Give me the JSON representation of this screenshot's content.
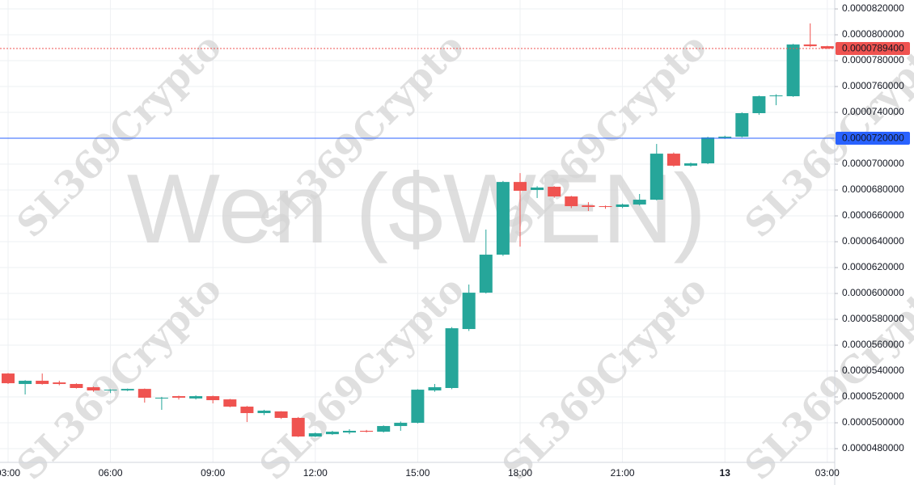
{
  "chart_data": {
    "type": "candlestick",
    "title": "Wen ($WEN)",
    "watermark": "SL369Crypto",
    "up_color": "#26a69a",
    "down_color": "#ef5350",
    "grid": true,
    "categories": [
      "03:00",
      null,
      null,
      null,
      null,
      null,
      "06:00",
      null,
      null,
      null,
      null,
      null,
      "09:00",
      null,
      null,
      null,
      null,
      null,
      "12:00",
      null,
      null,
      null,
      null,
      null,
      "15:00",
      null,
      null,
      null,
      null,
      null,
      "18:00",
      null,
      null,
      null,
      null,
      null,
      "21:00",
      null,
      null,
      null,
      null,
      null,
      "13",
      null,
      null,
      null,
      null,
      null,
      "03:00"
    ],
    "open": [
      5.381e-05,
      5.3e-05,
      5.325e-05,
      5.312e-05,
      5.3e-05,
      5.275e-05,
      5.25e-05,
      5.25e-05,
      5.262e-05,
      5.19e-05,
      5.206e-05,
      5.188e-05,
      5.206e-05,
      5.181e-05,
      5.125e-05,
      5.075e-05,
      5.088e-05,
      5.038e-05,
      4.894e-05,
      4.912e-05,
      4.925e-05,
      4.938e-05,
      4.931e-05,
      4.975e-05,
      5e-05,
      5.25e-05,
      5.269e-05,
      5.725e-05,
      6.006e-05,
      6.3e-05,
      6.862e-05,
      6.8e-05,
      6.825e-05,
      6.75e-05,
      6.681e-05,
      6.675e-05,
      6.669e-05,
      6.688e-05,
      6.725e-05,
      7.081e-05,
      6.988e-05,
      7.006e-05,
      7.2e-05,
      7.212e-05,
      7.394e-05,
      7.525e-05,
      7.525e-05,
      7.925e-05,
      7.912e-05
    ],
    "high": [
      5.385e-05,
      5.33e-05,
      5.381e-05,
      5.325e-05,
      5.305e-05,
      5.28e-05,
      5.26e-05,
      5.265e-05,
      5.265e-05,
      5.2e-05,
      5.21e-05,
      5.212e-05,
      5.21e-05,
      5.185e-05,
      5.13e-05,
      5.1e-05,
      5.09e-05,
      5.045e-05,
      4.925e-05,
      4.938e-05,
      4.95e-05,
      4.945e-05,
      4.98e-05,
      5.01e-05,
      5.26e-05,
      5.3e-05,
      5.74e-05,
      6.069e-05,
      6.494e-05,
      6.87e-05,
      6.931e-05,
      6.83e-05,
      6.83e-05,
      6.755e-05,
      6.706e-05,
      6.68e-05,
      6.695e-05,
      6.769e-05,
      7.156e-05,
      7.09e-05,
      7.012e-05,
      7.212e-05,
      7.22e-05,
      7.4e-05,
      7.53e-05,
      7.54e-05,
      7.93e-05,
      8.088e-05,
      7.915e-05
    ],
    "low": [
      5.3e-05,
      5.219e-05,
      5.295e-05,
      5.29e-05,
      5.265e-05,
      5.24e-05,
      5.23e-05,
      5.245e-05,
      5.156e-05,
      5.1e-05,
      5.18e-05,
      5.18e-05,
      5.15e-05,
      5.12e-05,
      5.006e-05,
      5.06e-05,
      5.03e-05,
      4.89e-05,
      4.89e-05,
      4.906e-05,
      4.912e-05,
      4.925e-05,
      4.925e-05,
      4.938e-05,
      4.995e-05,
      5.24e-05,
      5.26e-05,
      5.71e-05,
      6e-05,
      6.29e-05,
      6.362e-05,
      6.738e-05,
      6.74e-05,
      6.66e-05,
      6.638e-05,
      6.655e-05,
      6.66e-05,
      6.68e-05,
      6.72e-05,
      6.98e-05,
      6.98e-05,
      7e-05,
      7.195e-05,
      7.206e-05,
      7.381e-05,
      7.456e-05,
      7.52e-05,
      7.905e-05,
      7.89e-05
    ],
    "close": [
      5.306e-05,
      5.325e-05,
      5.3e-05,
      5.3e-05,
      5.269e-05,
      5.25e-05,
      5.256e-05,
      5.262e-05,
      5.194e-05,
      5.194e-05,
      5.194e-05,
      5.206e-05,
      5.175e-05,
      5.125e-05,
      5.075e-05,
      5.094e-05,
      5.038e-05,
      4.894e-05,
      4.919e-05,
      4.931e-05,
      4.938e-05,
      4.931e-05,
      4.975e-05,
      5e-05,
      5.256e-05,
      5.275e-05,
      5.731e-05,
      6.006e-05,
      6.3e-05,
      6.862e-05,
      6.794e-05,
      6.819e-05,
      6.75e-05,
      6.675e-05,
      6.669e-05,
      6.669e-05,
      6.688e-05,
      6.725e-05,
      7.081e-05,
      6.988e-05,
      7.006e-05,
      7.206e-05,
      7.212e-05,
      7.394e-05,
      7.525e-05,
      7.531e-05,
      7.925e-05,
      7.912e-05,
      7.894e-05
    ],
    "ylim": [
      4.694e-05,
      8.269e-05
    ],
    "yticks": [
      {
        "value": 8.2e-05,
        "label": "0.0000820000"
      },
      {
        "value": 8e-05,
        "label": "0.0000800000"
      },
      {
        "value": 7.8e-05,
        "label": "0.0000780000"
      },
      {
        "value": 7.6e-05,
        "label": "0.0000760000"
      },
      {
        "value": 7.4e-05,
        "label": "0.0000740000"
      },
      {
        "value": 7.2e-05,
        "label": "0.0000720000"
      },
      {
        "value": 7e-05,
        "label": "0.0000700000"
      },
      {
        "value": 6.8e-05,
        "label": "0.0000680000"
      },
      {
        "value": 6.6e-05,
        "label": "0.0000660000"
      },
      {
        "value": 6.4e-05,
        "label": "0.0000640000"
      },
      {
        "value": 6.2e-05,
        "label": "0.0000620000"
      },
      {
        "value": 6e-05,
        "label": "0.0000600000"
      },
      {
        "value": 5.8e-05,
        "label": "0.0000580000"
      },
      {
        "value": 5.6e-05,
        "label": "0.0000560000"
      },
      {
        "value": 5.4e-05,
        "label": "0.0000540000"
      },
      {
        "value": 5.2e-05,
        "label": "0.0000520000"
      },
      {
        "value": 5e-05,
        "label": "0.0000500000"
      },
      {
        "value": 4.8e-05,
        "label": "0.0000480000"
      }
    ],
    "price_lines": [
      {
        "value": 7.894e-05,
        "label": "0.0000789400",
        "color": "#ef5350",
        "style": "dotted"
      },
      {
        "value": 7.2e-05,
        "label": "0.0000720000",
        "color": "#2962ff",
        "style": "solid"
      }
    ]
  }
}
